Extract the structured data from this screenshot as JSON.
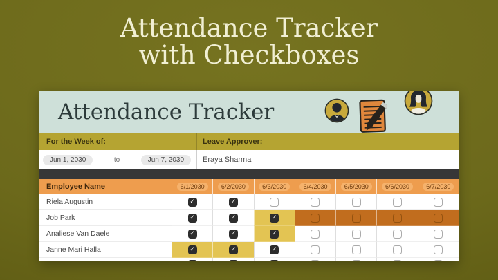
{
  "banner": {
    "title_line1": "Attendance Tracker",
    "title_line2": "with Checkboxes"
  },
  "sheet": {
    "title": "Attendance Tracker",
    "icons": [
      "man-avatar",
      "notepad-pencil",
      "woman-avatar"
    ],
    "week": {
      "label": "For the Week of:",
      "start_date": "Jun 1, 2030",
      "connector": "to",
      "end_date": "Jun 7, 2030"
    },
    "approver": {
      "label": "Leave Approver:",
      "name": "Eraya Sharma"
    },
    "table": {
      "name_header": "Employee Name",
      "date_headers": [
        "6/1/2030",
        "6/2/2030",
        "6/3/2030",
        "6/4/2030",
        "6/5/2030",
        "6/6/2030",
        "6/7/2030"
      ],
      "check_glyph": "✓",
      "rows": [
        {
          "name": "Riela Augustin",
          "partial": false,
          "cells": [
            {
              "checked": true,
              "bg": "white"
            },
            {
              "checked": true,
              "bg": "white"
            },
            {
              "checked": false,
              "bg": "white"
            },
            {
              "checked": false,
              "bg": "white"
            },
            {
              "checked": false,
              "bg": "white"
            },
            {
              "checked": false,
              "bg": "white"
            },
            {
              "checked": false,
              "bg": "white"
            }
          ]
        },
        {
          "name": "Job Park",
          "partial": false,
          "cells": [
            {
              "checked": true,
              "bg": "white"
            },
            {
              "checked": true,
              "bg": "white"
            },
            {
              "checked": true,
              "bg": "yellow"
            },
            {
              "checked": false,
              "bg": "orange"
            },
            {
              "checked": false,
              "bg": "orange"
            },
            {
              "checked": false,
              "bg": "orange"
            },
            {
              "checked": false,
              "bg": "orange"
            }
          ]
        },
        {
          "name": "Analiese Van Daele",
          "partial": false,
          "cells": [
            {
              "checked": true,
              "bg": "white"
            },
            {
              "checked": true,
              "bg": "white"
            },
            {
              "checked": true,
              "bg": "yellow"
            },
            {
              "checked": false,
              "bg": "white"
            },
            {
              "checked": false,
              "bg": "white"
            },
            {
              "checked": false,
              "bg": "white"
            },
            {
              "checked": false,
              "bg": "white"
            }
          ]
        },
        {
          "name": "Janne Mari Halla",
          "partial": false,
          "cells": [
            {
              "checked": true,
              "bg": "yellow"
            },
            {
              "checked": true,
              "bg": "yellow"
            },
            {
              "checked": true,
              "bg": "white"
            },
            {
              "checked": false,
              "bg": "white"
            },
            {
              "checked": false,
              "bg": "white"
            },
            {
              "checked": false,
              "bg": "white"
            },
            {
              "checked": false,
              "bg": "white"
            }
          ]
        },
        {
          "name": "",
          "partial": true,
          "cells": [
            {
              "checked": true,
              "bg": "white"
            },
            {
              "checked": true,
              "bg": "white"
            },
            {
              "checked": true,
              "bg": "white"
            },
            {
              "checked": false,
              "bg": "white"
            },
            {
              "checked": false,
              "bg": "white"
            },
            {
              "checked": false,
              "bg": "white"
            },
            {
              "checked": false,
              "bg": "white"
            }
          ]
        }
      ]
    }
  },
  "colors": {
    "page_bg": "#6c691b",
    "banner_text": "#f1efd3",
    "sheet_header_bg": "#cee0d9",
    "band_olive": "#b5a432",
    "band_dark": "#373737",
    "table_header_orange": "#ee9d4e",
    "cell_yellow": "#e3c453",
    "cell_orange": "#c16d1e",
    "checkbox_dark": "#2d2d2d",
    "avatar_gold": "#c8a93c"
  }
}
